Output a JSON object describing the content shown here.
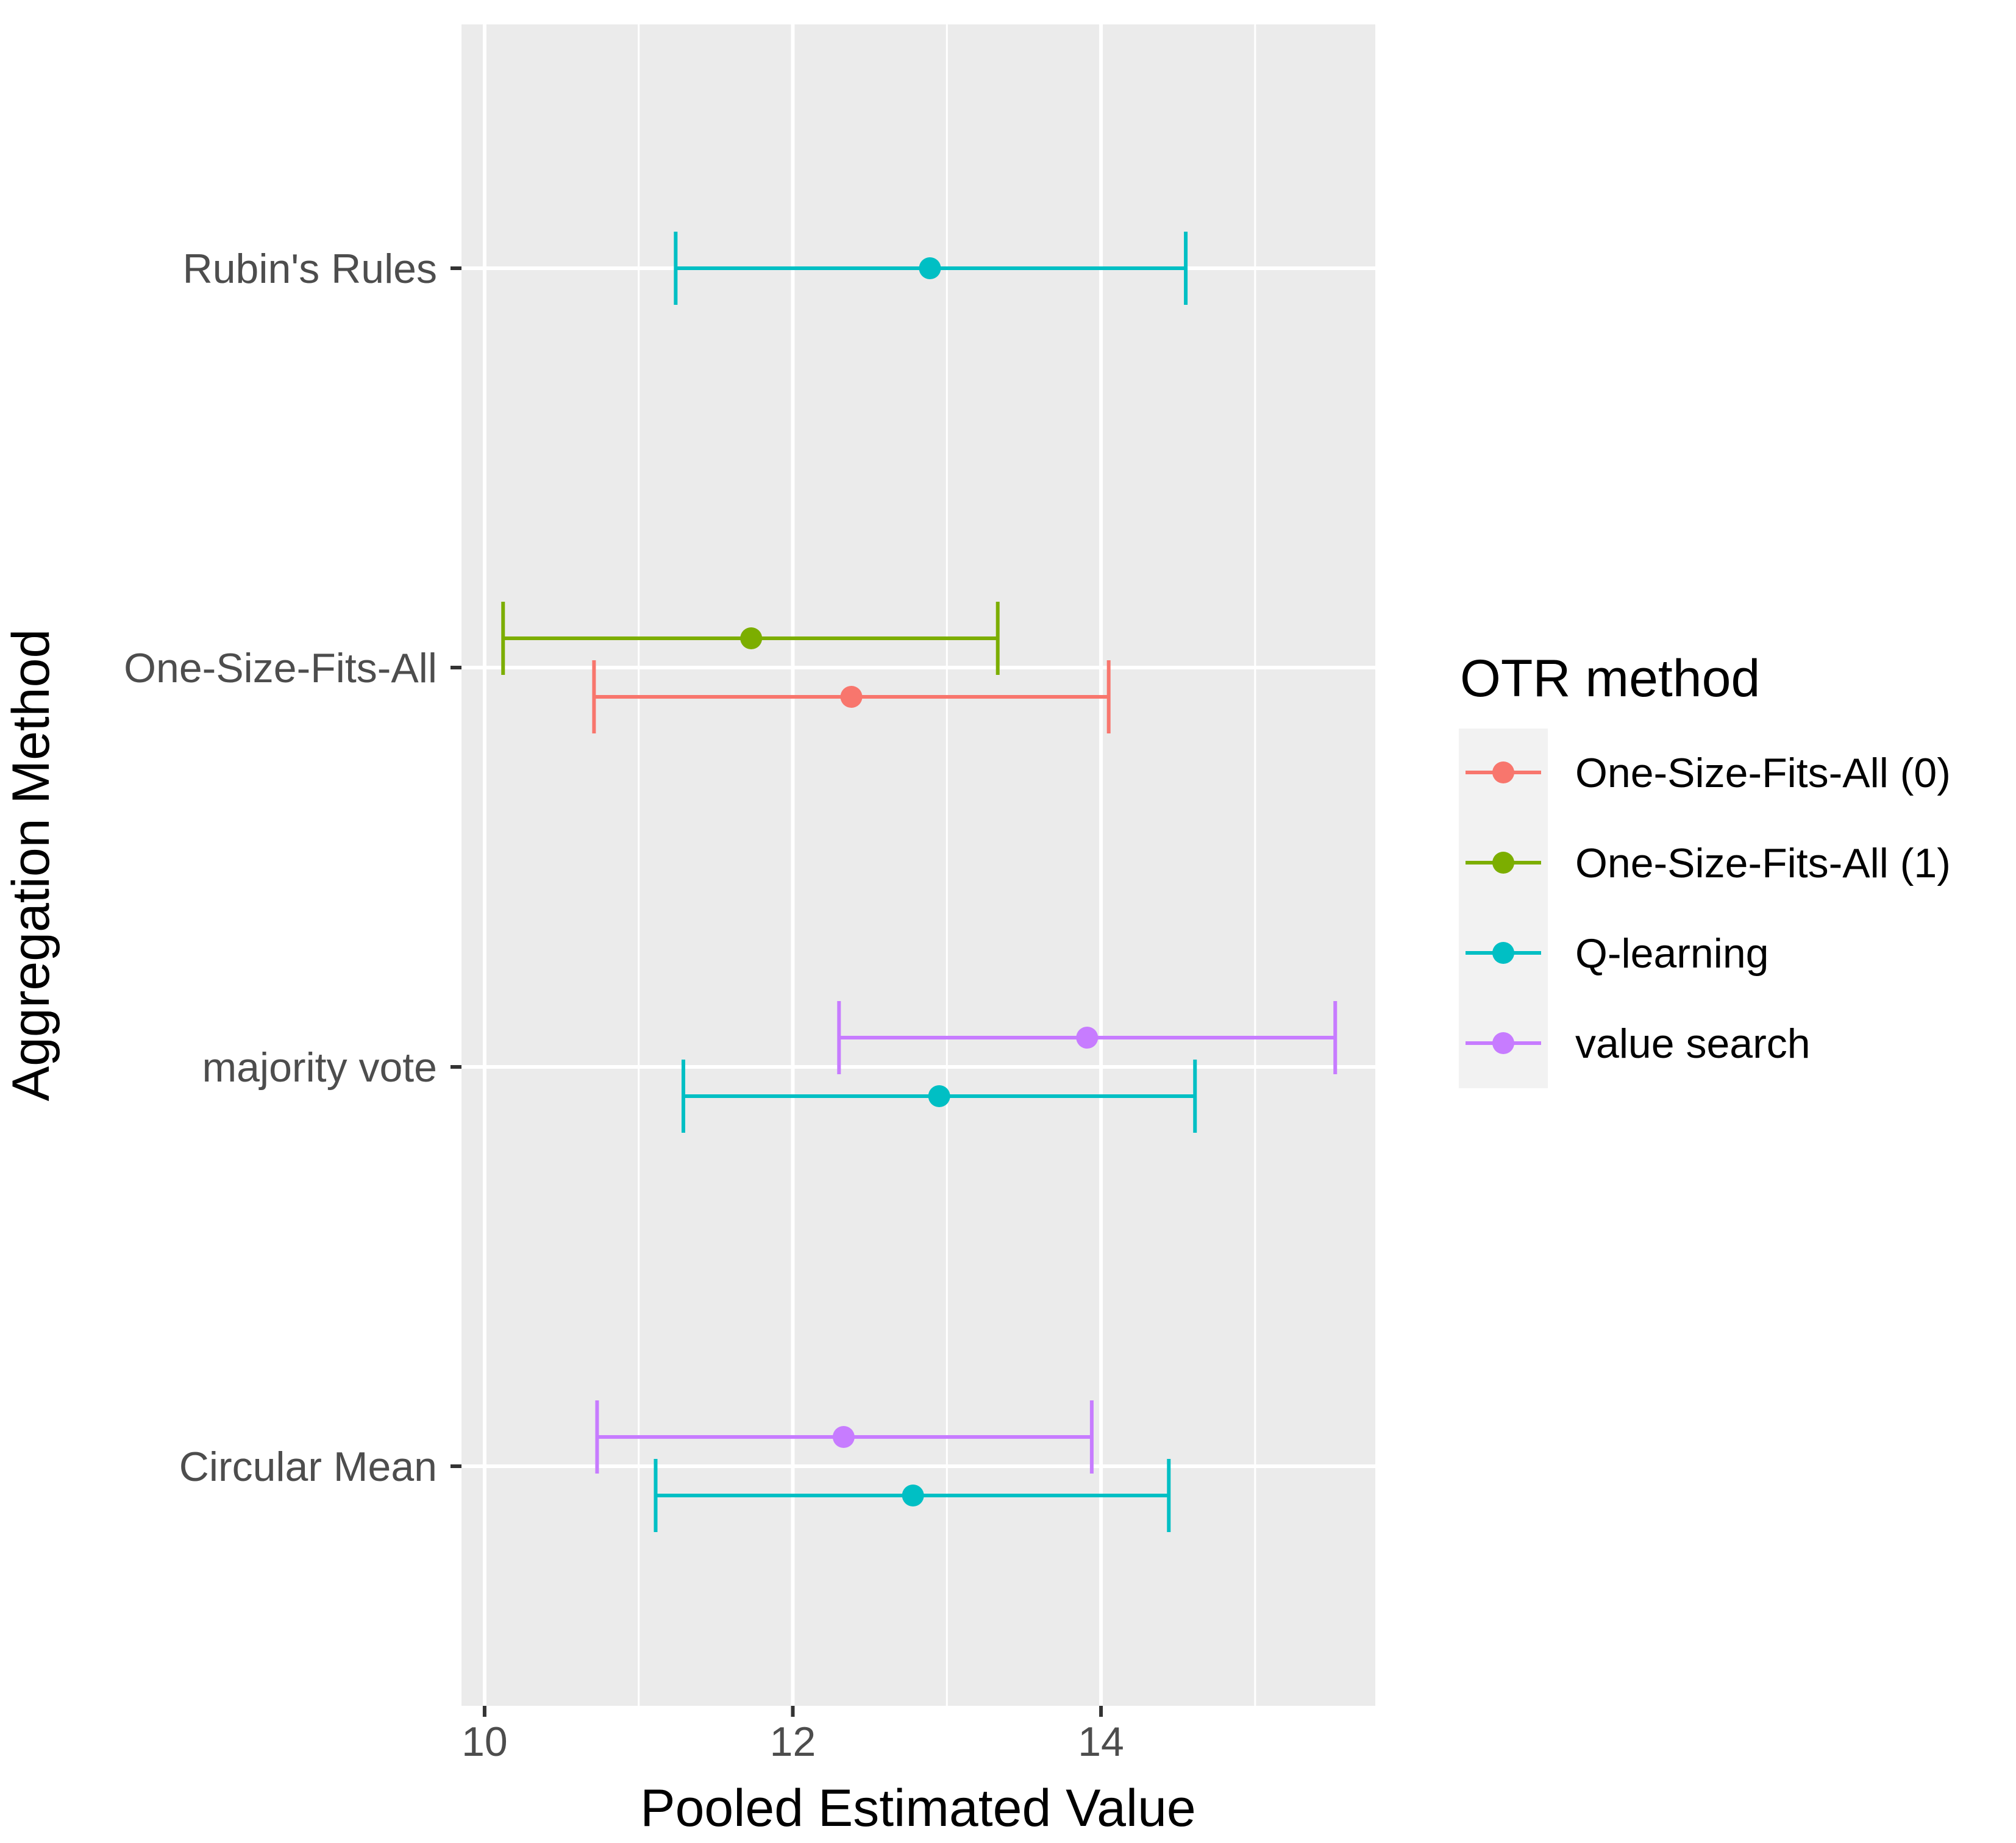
{
  "chart_data": {
    "type": "errorbar",
    "orientation": "horizontal",
    "xlabel": "Pooled Estimated Value",
    "ylabel": "Aggregation Method",
    "xlim": [
      9.85,
      15.78
    ],
    "x_ticks": [
      10,
      12,
      14
    ],
    "x_minor_ticks": [
      11,
      13,
      15
    ],
    "categories": [
      "Rubin's Rules",
      "One-Size-Fits-All",
      "majority vote",
      "Circular Mean"
    ],
    "grid": true,
    "legend": {
      "title": "OTR method",
      "position": "right",
      "entries": [
        "One-Size-Fits-All (0)",
        "One-Size-Fits-All (1)",
        "Q-learning",
        "value search"
      ]
    },
    "colors": {
      "One-Size-Fits-All (0)": "#F8766D",
      "One-Size-Fits-All (1)": "#7CAE00",
      "Q-learning": "#00BFC4",
      "value search": "#C77CFF"
    },
    "series": [
      {
        "name": "One-Size-Fits-All (0)",
        "points": [
          {
            "category": "One-Size-Fits-All",
            "estimate": 12.38,
            "lower": 10.71,
            "upper": 14.05
          }
        ]
      },
      {
        "name": "One-Size-Fits-All (1)",
        "points": [
          {
            "category": "One-Size-Fits-All",
            "estimate": 11.73,
            "lower": 10.12,
            "upper": 13.33
          }
        ]
      },
      {
        "name": "Q-learning",
        "points": [
          {
            "category": "Rubin's Rules",
            "estimate": 12.89,
            "lower": 11.24,
            "upper": 14.55
          },
          {
            "category": "majority vote",
            "estimate": 12.95,
            "lower": 11.29,
            "upper": 14.61
          },
          {
            "category": "Circular Mean",
            "estimate": 12.78,
            "lower": 11.11,
            "upper": 14.44
          }
        ]
      },
      {
        "name": "value search",
        "points": [
          {
            "category": "majority vote",
            "estimate": 13.91,
            "lower": 12.3,
            "upper": 15.52
          },
          {
            "category": "Circular Mean",
            "estimate": 12.33,
            "lower": 10.73,
            "upper": 13.94
          }
        ]
      }
    ]
  }
}
